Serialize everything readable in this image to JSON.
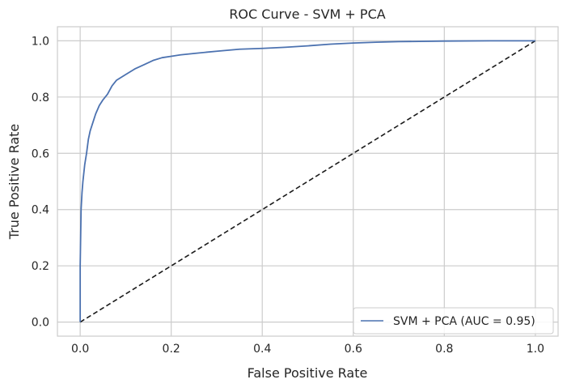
{
  "chart_data": {
    "type": "line",
    "title": "ROC Curve - SVM + PCA",
    "xlabel": "False Positive Rate",
    "ylabel": "True Positive Rate",
    "xlim": [
      -0.05,
      1.05
    ],
    "ylim": [
      -0.05,
      1.05
    ],
    "xticks": [
      0.0,
      0.2,
      0.4,
      0.6,
      0.8,
      1.0
    ],
    "yticks": [
      0.0,
      0.2,
      0.4,
      0.6,
      0.8,
      1.0
    ],
    "xtick_labels": [
      "0.0",
      "0.2",
      "0.4",
      "0.6",
      "0.8",
      "1.0"
    ],
    "ytick_labels": [
      "0.0",
      "0.2",
      "0.4",
      "0.6",
      "0.8",
      "1.0"
    ],
    "grid": true,
    "legend_position": "lower-right",
    "series": [
      {
        "name": "SVM + PCA (AUC = 0.95)",
        "color": "#4c72b0",
        "style": "solid",
        "x": [
          0.0,
          0.0,
          0.002,
          0.004,
          0.006,
          0.01,
          0.014,
          0.018,
          0.022,
          0.028,
          0.034,
          0.042,
          0.05,
          0.06,
          0.07,
          0.08,
          0.09,
          0.1,
          0.12,
          0.14,
          0.16,
          0.18,
          0.2,
          0.22,
          0.25,
          0.3,
          0.35,
          0.4,
          0.45,
          0.5,
          0.55,
          0.6,
          0.65,
          0.7,
          0.8,
          0.9,
          1.0
        ],
        "y": [
          0.0,
          0.2,
          0.4,
          0.46,
          0.5,
          0.56,
          0.6,
          0.65,
          0.68,
          0.71,
          0.74,
          0.77,
          0.79,
          0.81,
          0.84,
          0.86,
          0.87,
          0.88,
          0.9,
          0.915,
          0.93,
          0.94,
          0.945,
          0.95,
          0.955,
          0.963,
          0.97,
          0.973,
          0.977,
          0.982,
          0.988,
          0.992,
          0.995,
          0.997,
          0.999,
          1.0,
          1.0
        ]
      },
      {
        "name": "",
        "color": "#1a1a1a",
        "style": "dashed",
        "x": [
          0.0,
          1.0
        ],
        "y": [
          0.0,
          1.0
        ]
      }
    ]
  }
}
